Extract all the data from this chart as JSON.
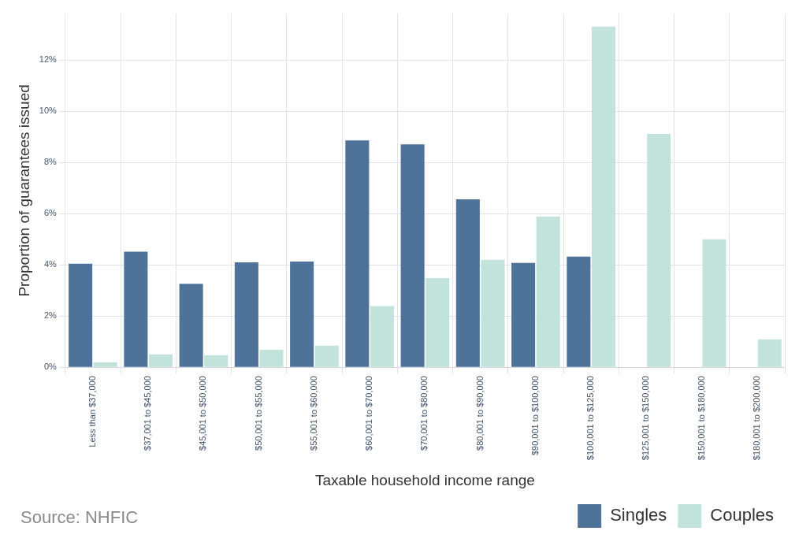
{
  "chart_data": {
    "type": "bar",
    "xlabel": "Taxable household income range",
    "ylabel": "Proportion of guarantees issued",
    "categories": [
      "Less than $37,000",
      "$37,001 to $45,000",
      "$45,001 to $50,000",
      "$50,001 to $55,000",
      "$55,001 to $60,000",
      "$60,001 to $70,000",
      "$70,001 to $80,000",
      "$80,001 to $90,000",
      "$90,001 to $100,000",
      "$100,001 to $125,000",
      "$125,001 to $150,000",
      "$150,001 to $180,000",
      "$180,001 to $200,000"
    ],
    "series": [
      {
        "name": "Singles",
        "color": "#4f7398",
        "values": [
          4.04,
          4.51,
          3.26,
          4.1,
          4.13,
          8.86,
          8.7,
          6.56,
          4.07,
          4.32,
          null,
          null,
          null
        ]
      },
      {
        "name": "Couples",
        "color": "#c2e3dc",
        "values": [
          0.19,
          0.5,
          0.47,
          0.68,
          0.84,
          2.39,
          3.48,
          4.2,
          5.88,
          13.3,
          9.11,
          5.0,
          1.09
        ]
      }
    ],
    "ylim": [
      0,
      13.8
    ],
    "yticks": [
      {
        "value": 0,
        "label": "0%"
      },
      {
        "value": 2,
        "label": "2%"
      },
      {
        "value": 4,
        "label": "4%"
      },
      {
        "value": 6,
        "label": "6%"
      },
      {
        "value": 8,
        "label": "8%"
      },
      {
        "value": 10,
        "label": "10%"
      },
      {
        "value": 12,
        "label": "12%"
      }
    ],
    "grid": true,
    "legend": "bottom right",
    "annotations": [
      "Source: NHFIC"
    ]
  }
}
